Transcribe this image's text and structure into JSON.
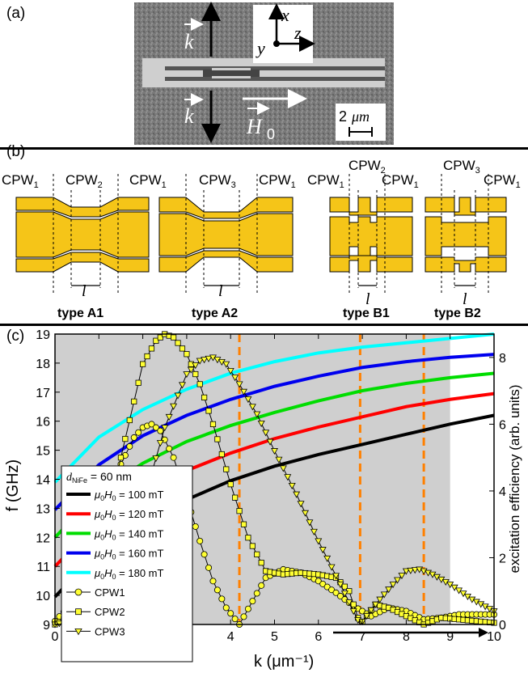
{
  "panels": {
    "a": {
      "label": "(a)",
      "k_label": "k",
      "x_label": "x",
      "y_label": "y",
      "z_label": "z",
      "h0_label": "H",
      "h0_sub": "0",
      "scale_value": "2",
      "scale_unit": "μm"
    },
    "b": {
      "label": "(b)",
      "cpw_base": "CPW",
      "cpw1_sub": "1",
      "cpw2_sub": "2",
      "cpw3_sub": "3",
      "l_label": "l",
      "types": [
        "type A1",
        "type A2",
        "type B1",
        "type B2"
      ]
    },
    "c": {
      "label": "(c)"
    }
  },
  "chart_data": {
    "type": "line",
    "xlabel": "k (μm⁻¹)",
    "ylabel": "f (GHz)",
    "y2label": "excitation efficiency (arb. units)",
    "xlim": [
      0,
      10
    ],
    "ylim": [
      9,
      19
    ],
    "y2lim": [
      0,
      8.7
    ],
    "x_ticks": [
      "0",
      "1",
      "2",
      "3",
      "4",
      "5",
      "6",
      "7",
      "8",
      "9",
      "10"
    ],
    "y_ticks": [
      "9",
      "10",
      "11",
      "12",
      "13",
      "14",
      "15",
      "16",
      "17",
      "18",
      "19"
    ],
    "y2_ticks": [
      "0",
      "2",
      "4",
      "6",
      "8"
    ],
    "shaded_region_k": [
      0,
      9
    ],
    "vlines_k": [
      4.2,
      6.95,
      8.4
    ],
    "legend": {
      "title": "d_NiFe = 60 nm",
      "title_main": "d",
      "title_sub": "NiFe",
      "title_rest": " = 60 nm",
      "entries": [
        {
          "text": "μ0H0 = 100 mT",
          "value": "100 mT"
        },
        {
          "text": "μ0H0 = 120 mT",
          "value": "120 mT"
        },
        {
          "text": "μ0H0 = 140 mT",
          "value": "140 mT"
        },
        {
          "text": "μ0H0 = 160 mT",
          "value": "160 mT"
        },
        {
          "text": "μ0H0 = 180 mT",
          "value": "180 mT"
        },
        {
          "text": "CPW1"
        },
        {
          "text": "CPW2"
        },
        {
          "text": "CPW3"
        }
      ]
    },
    "dispersion": [
      {
        "field_mT": 100,
        "color": "#000000",
        "k": [
          0,
          1,
          2,
          3,
          4,
          5,
          6,
          7,
          8,
          9,
          10
        ],
        "f": [
          9.95,
          11.55,
          12.55,
          13.3,
          13.95,
          14.45,
          14.85,
          15.2,
          15.55,
          15.9,
          16.2
        ]
      },
      {
        "field_mT": 120,
        "color": "#ff0000",
        "k": [
          0,
          1,
          2,
          3,
          4,
          5,
          6,
          7,
          8,
          9,
          10
        ],
        "f": [
          11.0,
          12.55,
          13.55,
          14.3,
          14.9,
          15.4,
          15.8,
          16.15,
          16.5,
          16.75,
          16.95
        ]
      },
      {
        "field_mT": 140,
        "color": "#00dd00",
        "k": [
          0,
          1,
          2,
          3,
          4,
          5,
          6,
          7,
          8,
          9,
          10
        ],
        "f": [
          12.0,
          13.55,
          14.55,
          15.3,
          15.85,
          16.3,
          16.7,
          17.05,
          17.3,
          17.5,
          17.65
        ]
      },
      {
        "field_mT": 160,
        "color": "#0000ee",
        "k": [
          0,
          1,
          2,
          3,
          4,
          5,
          6,
          7,
          8,
          9,
          10
        ],
        "f": [
          12.95,
          14.5,
          15.5,
          16.2,
          16.75,
          17.2,
          17.55,
          17.85,
          18.05,
          18.2,
          18.3
        ]
      },
      {
        "field_mT": 180,
        "color": "#00ffff",
        "k": [
          0,
          1,
          2,
          3,
          4,
          5,
          6,
          7,
          8,
          9,
          10
        ],
        "f": [
          13.9,
          15.45,
          16.4,
          17.1,
          17.65,
          18.05,
          18.35,
          18.55,
          18.7,
          18.85,
          19.0
        ]
      }
    ],
    "excitation": [
      {
        "waveguide": "CPW1",
        "marker": "circle",
        "k": [
          0,
          0.5,
          1.0,
          1.5,
          1.8,
          2.0,
          2.2,
          2.4,
          2.7,
          3.0,
          3.3,
          3.6,
          3.9,
          4.2,
          4.5,
          4.8,
          5.2,
          5.6,
          6.0,
          6.4,
          6.8,
          7.2,
          7.6,
          8.0,
          8.4,
          8.8,
          9.2,
          9.6,
          10.0
        ],
        "e": [
          0.1,
          0.8,
          2.7,
          4.8,
          5.6,
          5.9,
          6.0,
          5.8,
          5.0,
          3.8,
          2.5,
          1.3,
          0.5,
          0.0,
          0.7,
          1.4,
          1.65,
          1.55,
          1.3,
          0.95,
          0.55,
          0.25,
          0.5,
          0.4,
          0.15,
          0.2,
          0.3,
          0.3,
          0.3
        ]
      },
      {
        "waveguide": "CPW2",
        "marker": "square",
        "k": [
          0,
          0.5,
          1.0,
          1.5,
          2.0,
          2.3,
          2.5,
          2.7,
          3.0,
          3.3,
          3.6,
          4.0,
          4.4,
          4.8,
          5.2,
          5.6,
          6.0,
          6.4,
          6.7,
          6.95,
          7.3,
          7.6,
          8.0,
          8.4,
          8.8,
          9.2,
          9.6,
          10.0
        ],
        "e": [
          0.0,
          0.4,
          2.0,
          5.0,
          7.8,
          8.5,
          8.7,
          8.6,
          8.1,
          7.2,
          6.0,
          4.2,
          2.6,
          1.6,
          1.5,
          1.55,
          1.5,
          1.4,
          1.0,
          0.0,
          0.6,
          0.5,
          0.25,
          0.0,
          0.2,
          0.15,
          0.1,
          0.05
        ]
      },
      {
        "waveguide": "CPW3",
        "marker": "triangle",
        "k": [
          0,
          0.5,
          1.0,
          1.5,
          2.0,
          2.5,
          3.0,
          3.3,
          3.6,
          3.9,
          4.2,
          4.6,
          5.0,
          5.5,
          6.0,
          6.5,
          6.95,
          7.3,
          7.7,
          8.0,
          8.3,
          8.6,
          9.0,
          9.5,
          10.0
        ],
        "e": [
          0.0,
          0.15,
          0.6,
          1.7,
          3.6,
          5.9,
          7.5,
          7.9,
          8.0,
          7.8,
          7.2,
          6.3,
          5.2,
          3.9,
          2.5,
          1.2,
          0.0,
          0.6,
          1.2,
          1.6,
          1.65,
          1.5,
          1.2,
          0.75,
          0.4
        ]
      }
    ]
  }
}
